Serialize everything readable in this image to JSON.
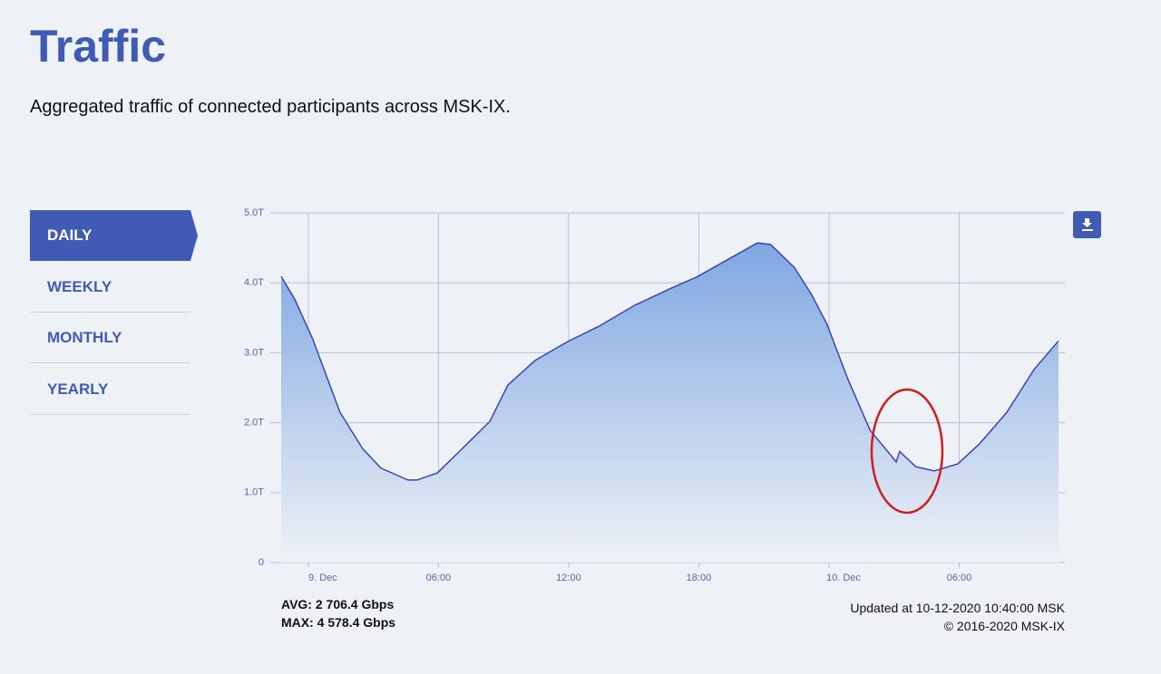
{
  "header": {
    "title": "Traffic",
    "subtitle": "Aggregated traffic of connected participants across MSK-IX."
  },
  "nav": {
    "items": [
      "DAILY",
      "WEEKLY",
      "MONTHLY",
      "YEARLY"
    ]
  },
  "chart_data": {
    "type": "area",
    "color": "#3a45b5",
    "grid": true,
    "x": [
      -1.25,
      -0.63,
      0.21,
      1.46,
      2.5,
      3.35,
      4.6,
      5.0,
      5.94,
      7.1,
      8.37,
      9.2,
      10.45,
      11.96,
      13.4,
      15.05,
      16.7,
      17.94,
      19.2,
      20.7,
      21.3,
      22.4,
      23.2,
      23.9,
      24.9,
      25.9,
      27.1,
      27.26,
      28.0,
      28.85,
      29.94,
      30.94,
      32.2,
      33.45,
      34.58
    ],
    "values": [
      4.09,
      3.77,
      3.19,
      2.15,
      1.63,
      1.35,
      1.18,
      1.18,
      1.28,
      1.63,
      2.02,
      2.54,
      2.89,
      3.16,
      3.38,
      3.68,
      3.92,
      4.09,
      4.31,
      4.57,
      4.55,
      4.22,
      3.83,
      3.41,
      2.6,
      1.89,
      1.44,
      1.59,
      1.37,
      1.31,
      1.41,
      1.7,
      2.15,
      2.76,
      3.17
    ],
    "xlim": [
      -1.25,
      34.6
    ],
    "xticks": [
      {
        "value": 0,
        "label": "9. Dec"
      },
      {
        "value": 6,
        "label": "06:00"
      },
      {
        "value": 12,
        "label": "12:00"
      },
      {
        "value": 18,
        "label": "18:00"
      },
      {
        "value": 24,
        "label": "10. Dec"
      },
      {
        "value": 30,
        "label": "06:00"
      }
    ],
    "ylim": [
      0,
      5
    ],
    "yticks": [
      0,
      {
        "value": 1,
        "label": "1.0T"
      },
      {
        "value": 2,
        "label": "2.0T"
      },
      {
        "value": 3,
        "label": "3.0T"
      },
      {
        "value": 4,
        "label": "4.0T"
      },
      {
        "value": 5,
        "label": "5.0T"
      }
    ]
  },
  "stats": {
    "avg": "AVG: 2 706.4 Gbps",
    "max": "MAX: 4 578.4 Gbps"
  },
  "footer": {
    "updated": "Updated at 10-12-2020 10:40:00 MSK",
    "copyright": "© 2016-2020 MSK-IX"
  }
}
